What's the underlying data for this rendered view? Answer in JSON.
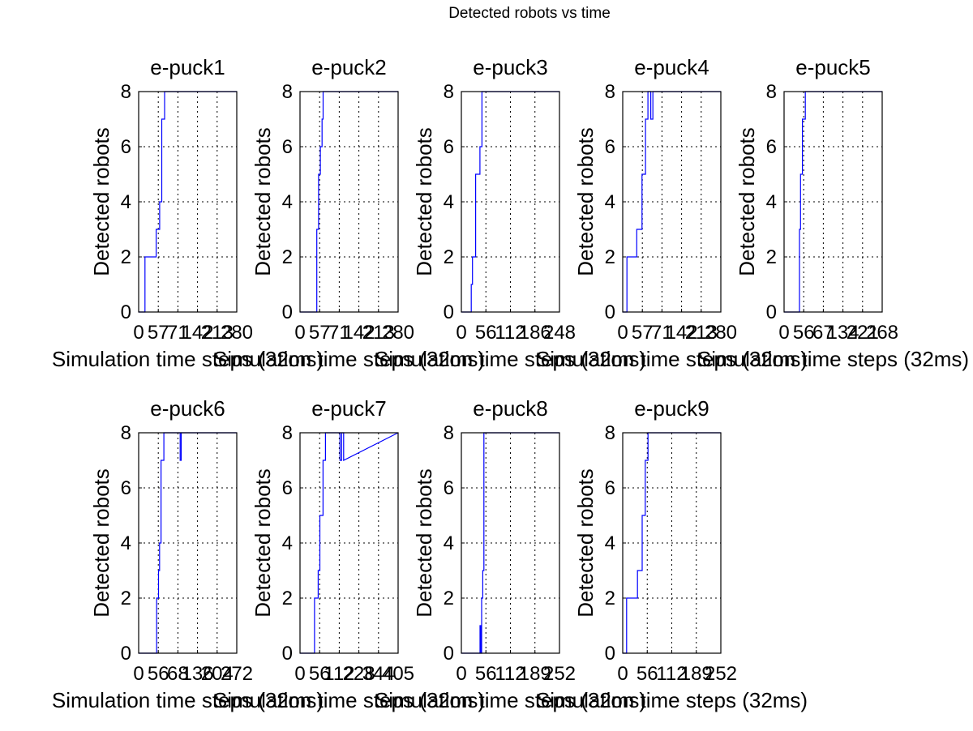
{
  "figure": {
    "suptitle": "Detected robots vs time"
  },
  "chart_data": [
    {
      "type": "line",
      "title": "e-puck1",
      "xlabel": "Simulation time steps (32ms)",
      "ylabel": "Detected robots",
      "xticks": [
        "0",
        "57",
        "71",
        "142",
        "213",
        "280"
      ],
      "yticks": [
        "0",
        "2",
        "4",
        "6",
        "8"
      ],
      "xlim": [
        0,
        280
      ],
      "ylim": [
        0,
        8
      ],
      "grid": true,
      "color": "#0000ff",
      "x": [
        0,
        18,
        18,
        50,
        50,
        60,
        60,
        66,
        66,
        74,
        74,
        280
      ],
      "y": [
        0,
        0,
        2,
        2,
        3,
        3,
        4,
        4,
        7,
        7,
        8,
        8
      ]
    },
    {
      "type": "line",
      "title": "e-puck2",
      "xlabel": "Simulation time steps (32ms)",
      "ylabel": "Detected robots",
      "xticks": [
        "0",
        "57",
        "71",
        "142",
        "213",
        "280"
      ],
      "yticks": [
        "0",
        "2",
        "4",
        "6",
        "8"
      ],
      "xlim": [
        0,
        280
      ],
      "ylim": [
        0,
        8
      ],
      "grid": true,
      "color": "#0000ff",
      "x": [
        0,
        48,
        48,
        53,
        53,
        58,
        58,
        63,
        63,
        66,
        66,
        280
      ],
      "y": [
        0,
        0,
        3,
        3,
        5,
        5,
        6,
        6,
        7,
        7,
        8,
        8
      ]
    },
    {
      "type": "line",
      "title": "e-puck3",
      "xlabel": "Simulation time steps (32ms)",
      "ylabel": "Detected robots",
      "xticks": [
        "0",
        "56",
        "112",
        "186",
        "248"
      ],
      "yticks": [
        "0",
        "2",
        "4",
        "6",
        "8"
      ],
      "xlim": [
        0,
        248
      ],
      "ylim": [
        0,
        8
      ],
      "grid": true,
      "color": "#0000ff",
      "x": [
        0,
        25,
        25,
        28,
        28,
        36,
        36,
        47,
        47,
        52,
        52,
        248
      ],
      "y": [
        0,
        0,
        1,
        1,
        2,
        2,
        5,
        5,
        6,
        6,
        8,
        8
      ]
    },
    {
      "type": "line",
      "title": "e-puck4",
      "xlabel": "Simulation time steps (32ms)",
      "ylabel": "Detected robots",
      "xticks": [
        "0",
        "57",
        "71",
        "142",
        "213",
        "280"
      ],
      "yticks": [
        "0",
        "2",
        "4",
        "6",
        "8"
      ],
      "xlim": [
        0,
        280
      ],
      "ylim": [
        0,
        8
      ],
      "grid": true,
      "color": "#0000ff",
      "x": [
        0,
        12,
        12,
        40,
        40,
        55,
        55,
        65,
        65,
        72,
        72,
        80,
        80,
        86,
        86,
        90,
        90,
        280
      ],
      "y": [
        0,
        0,
        2,
        2,
        3,
        3,
        5,
        5,
        7,
        7,
        8,
        8,
        7,
        7,
        8,
        8,
        8,
        8
      ]
    },
    {
      "type": "line",
      "title": "e-puck5",
      "xlabel": "Simulation time steps (32ms)",
      "ylabel": "Detected robots",
      "xticks": [
        "0",
        "56",
        "67",
        "134",
        "221",
        "268"
      ],
      "yticks": [
        "0",
        "2",
        "4",
        "6",
        "8"
      ],
      "xlim": [
        0,
        268
      ],
      "ylim": [
        0,
        8
      ],
      "grid": true,
      "color": "#0000ff",
      "x": [
        0,
        42,
        42,
        45,
        45,
        50,
        50,
        55,
        55,
        58,
        58,
        268
      ],
      "y": [
        0,
        0,
        3,
        3,
        5,
        5,
        7,
        7,
        7,
        7,
        8,
        8
      ]
    },
    {
      "type": "line",
      "title": "e-puck6",
      "xlabel": "Simulation time steps (32ms)",
      "ylabel": "Detected robots",
      "xticks": [
        "0",
        "56",
        "68",
        "136",
        "204",
        "272"
      ],
      "yticks": [
        "0",
        "2",
        "4",
        "6",
        "8"
      ],
      "xlim": [
        0,
        272
      ],
      "ylim": [
        0,
        8
      ],
      "grid": true,
      "color": "#0000ff",
      "x": [
        0,
        50,
        50,
        55,
        55,
        58,
        58,
        62,
        62,
        70,
        70,
        115,
        115,
        118,
        118,
        272
      ],
      "y": [
        0,
        0,
        2,
        2,
        3,
        3,
        4,
        4,
        7,
        7,
        8,
        8,
        7,
        7,
        8,
        8
      ]
    },
    {
      "type": "line",
      "title": "e-puck7",
      "xlabel": "Simulation time steps (32ms)",
      "ylabel": "Detected robots",
      "xticks": [
        "0",
        "56",
        "112",
        "228",
        "344",
        "405"
      ],
      "yticks": [
        "0",
        "2",
        "4",
        "6",
        "8"
      ],
      "xlim": [
        0,
        405
      ],
      "ylim": [
        0,
        8
      ],
      "grid": true,
      "color": "#0000ff",
      "x": [
        0,
        60,
        60,
        75,
        75,
        82,
        82,
        95,
        95,
        105,
        105,
        165,
        165,
        172,
        172,
        180,
        180,
        405
      ],
      "y": [
        0,
        0,
        2,
        2,
        3,
        3,
        5,
        5,
        7,
        7,
        8,
        8,
        7,
        7,
        8,
        8,
        7,
        8
      ]
    },
    {
      "type": "line",
      "title": "e-puck8",
      "xlabel": "Simulation time steps (32ms)",
      "ylabel": "Detected robots",
      "xticks": [
        "0",
        "56",
        "112",
        "189",
        "252"
      ],
      "yticks": [
        "0",
        "2",
        "4",
        "6",
        "8"
      ],
      "xlim": [
        0,
        252
      ],
      "ylim": [
        0,
        8
      ],
      "grid": true,
      "color": "#0000ff",
      "x": [
        0,
        48,
        48,
        50,
        50,
        52,
        52,
        55,
        55,
        58,
        58,
        252
      ],
      "y": [
        0,
        0,
        1,
        1,
        0,
        0,
        2,
        2,
        3,
        3,
        8,
        8
      ]
    },
    {
      "type": "line",
      "title": "e-puck9",
      "xlabel": "Simulation time steps (32ms)",
      "ylabel": "Detected robots",
      "xticks": [
        "0",
        "56",
        "112",
        "189",
        "252"
      ],
      "yticks": [
        "0",
        "2",
        "4",
        "6",
        "8"
      ],
      "xlim": [
        0,
        252
      ],
      "ylim": [
        0,
        8
      ],
      "grid": true,
      "color": "#0000ff",
      "x": [
        0,
        10,
        10,
        38,
        38,
        50,
        50,
        58,
        58,
        65,
        65,
        252
      ],
      "y": [
        0,
        0,
        2,
        2,
        3,
        3,
        5,
        5,
        7,
        7,
        8,
        8
      ]
    }
  ]
}
